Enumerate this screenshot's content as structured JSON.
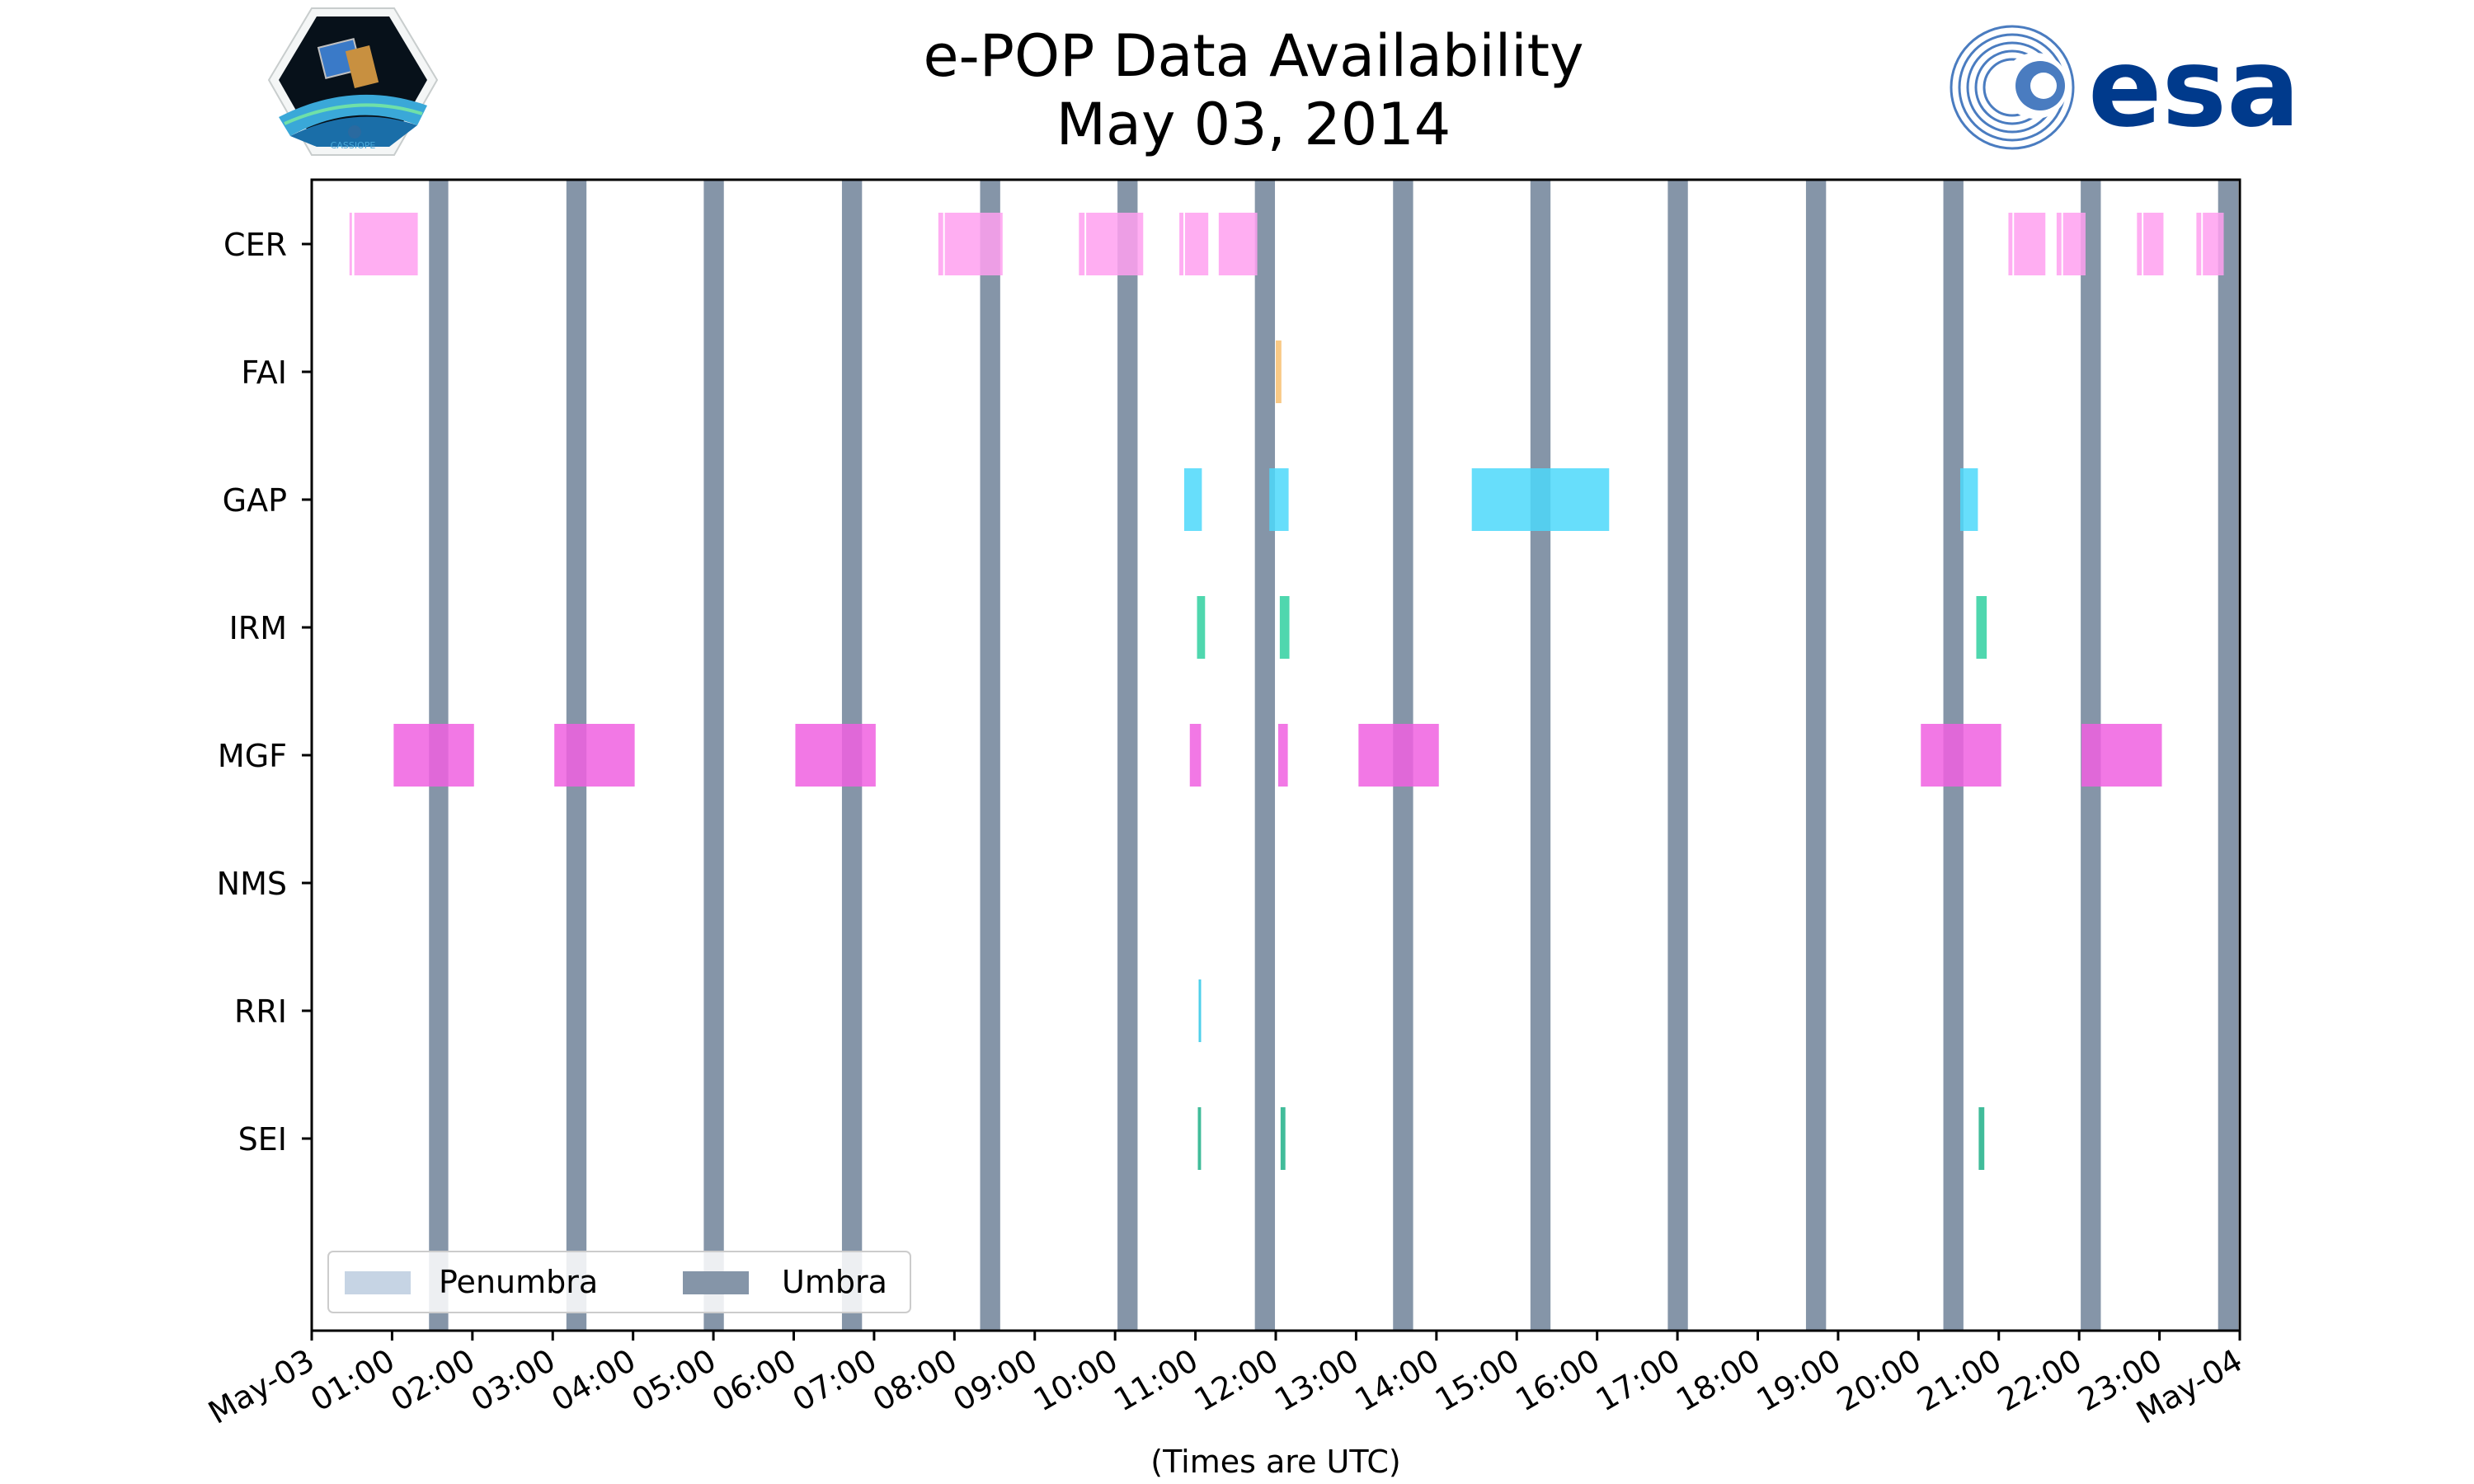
{
  "colors": {
    "umbra": "#8595a8",
    "penumbra": "#c6d4e4",
    "CER": "#ffa0f0",
    "FAI": "#f8c070",
    "GAP": "#4cd8fa",
    "IRM": "#30d0a0",
    "MGF": "#f060e0",
    "NMS": "#888888",
    "RRI": "#30c8e8",
    "SEI": "#20b088"
  },
  "logos": {
    "left": "CASSIOPE",
    "right": "esa"
  },
  "chart_data": {
    "type": "timeline",
    "title": [
      "e-POP Data Availability",
      "May 03, 2014"
    ],
    "xlabel": "(Times are UTC)",
    "xlim": [
      0,
      24
    ],
    "x_units": "hours UTC",
    "x_ticks": [
      {
        "v": 0,
        "label": "May-03"
      },
      {
        "v": 1,
        "label": "01:00"
      },
      {
        "v": 2,
        "label": "02:00"
      },
      {
        "v": 3,
        "label": "03:00"
      },
      {
        "v": 4,
        "label": "04:00"
      },
      {
        "v": 5,
        "label": "05:00"
      },
      {
        "v": 6,
        "label": "06:00"
      },
      {
        "v": 7,
        "label": "07:00"
      },
      {
        "v": 8,
        "label": "08:00"
      },
      {
        "v": 9,
        "label": "09:00"
      },
      {
        "v": 10,
        "label": "10:00"
      },
      {
        "v": 11,
        "label": "11:00"
      },
      {
        "v": 12,
        "label": "12:00"
      },
      {
        "v": 13,
        "label": "13:00"
      },
      {
        "v": 14,
        "label": "14:00"
      },
      {
        "v": 15,
        "label": "15:00"
      },
      {
        "v": 16,
        "label": "16:00"
      },
      {
        "v": 17,
        "label": "17:00"
      },
      {
        "v": 18,
        "label": "18:00"
      },
      {
        "v": 19,
        "label": "19:00"
      },
      {
        "v": 20,
        "label": "20:00"
      },
      {
        "v": 21,
        "label": "21:00"
      },
      {
        "v": 22,
        "label": "22:00"
      },
      {
        "v": 23,
        "label": "23:00"
      },
      {
        "v": 24,
        "label": "May-04"
      }
    ],
    "instruments": [
      "CER",
      "FAI",
      "GAP",
      "IRM",
      "MGF",
      "NMS",
      "RRI",
      "SEI"
    ],
    "umbra": [
      [
        1.46,
        1.7
      ],
      [
        3.17,
        3.42
      ],
      [
        4.88,
        5.13
      ],
      [
        6.6,
        6.85
      ],
      [
        8.32,
        8.57
      ],
      [
        10.03,
        10.28
      ],
      [
        11.74,
        11.99
      ],
      [
        13.46,
        13.71
      ],
      [
        15.17,
        15.42
      ],
      [
        16.88,
        17.13
      ],
      [
        18.6,
        18.85
      ],
      [
        20.31,
        20.56
      ],
      [
        22.02,
        22.27
      ],
      [
        23.73,
        23.98
      ]
    ],
    "penumbra": [],
    "series": [
      {
        "name": "CER",
        "segments": [
          [
            0.47,
            0.5
          ],
          [
            0.53,
            1.32
          ],
          [
            7.8,
            7.86
          ],
          [
            7.88,
            8.6
          ],
          [
            9.55,
            9.62
          ],
          [
            9.64,
            10.35
          ],
          [
            10.8,
            10.85
          ],
          [
            10.87,
            11.16
          ],
          [
            11.29,
            11.77
          ],
          [
            21.12,
            21.17
          ],
          [
            21.19,
            21.58
          ],
          [
            21.72,
            21.78
          ],
          [
            21.8,
            22.08
          ],
          [
            22.72,
            22.78
          ],
          [
            22.8,
            23.05
          ],
          [
            23.46,
            23.52
          ],
          [
            23.54,
            23.8
          ]
        ]
      },
      {
        "name": "FAI",
        "segments": [
          [
            12.0,
            12.07
          ]
        ]
      },
      {
        "name": "GAP",
        "segments": [
          [
            10.86,
            11.08
          ],
          [
            11.92,
            12.16
          ],
          [
            14.44,
            16.15
          ],
          [
            20.52,
            20.74
          ]
        ]
      },
      {
        "name": "IRM",
        "segments": [
          [
            11.02,
            11.12
          ],
          [
            12.05,
            12.17
          ],
          [
            20.72,
            20.85
          ]
        ]
      },
      {
        "name": "MGF",
        "segments": [
          [
            1.02,
            2.02
          ],
          [
            3.02,
            4.02
          ],
          [
            6.02,
            7.02
          ],
          [
            10.93,
            11.07
          ],
          [
            12.03,
            12.15
          ],
          [
            13.03,
            14.03
          ],
          [
            20.03,
            21.03
          ],
          [
            22.03,
            23.03
          ]
        ]
      },
      {
        "name": "NMS",
        "segments": []
      },
      {
        "name": "RRI",
        "segments": [
          [
            11.04,
            11.06
          ]
        ]
      },
      {
        "name": "SEI",
        "segments": [
          [
            11.03,
            11.07
          ],
          [
            12.06,
            12.12
          ],
          [
            20.75,
            20.82
          ]
        ]
      }
    ],
    "legend": {
      "location": "lower-left",
      "entries": [
        "Penumbra",
        "Umbra"
      ]
    }
  }
}
